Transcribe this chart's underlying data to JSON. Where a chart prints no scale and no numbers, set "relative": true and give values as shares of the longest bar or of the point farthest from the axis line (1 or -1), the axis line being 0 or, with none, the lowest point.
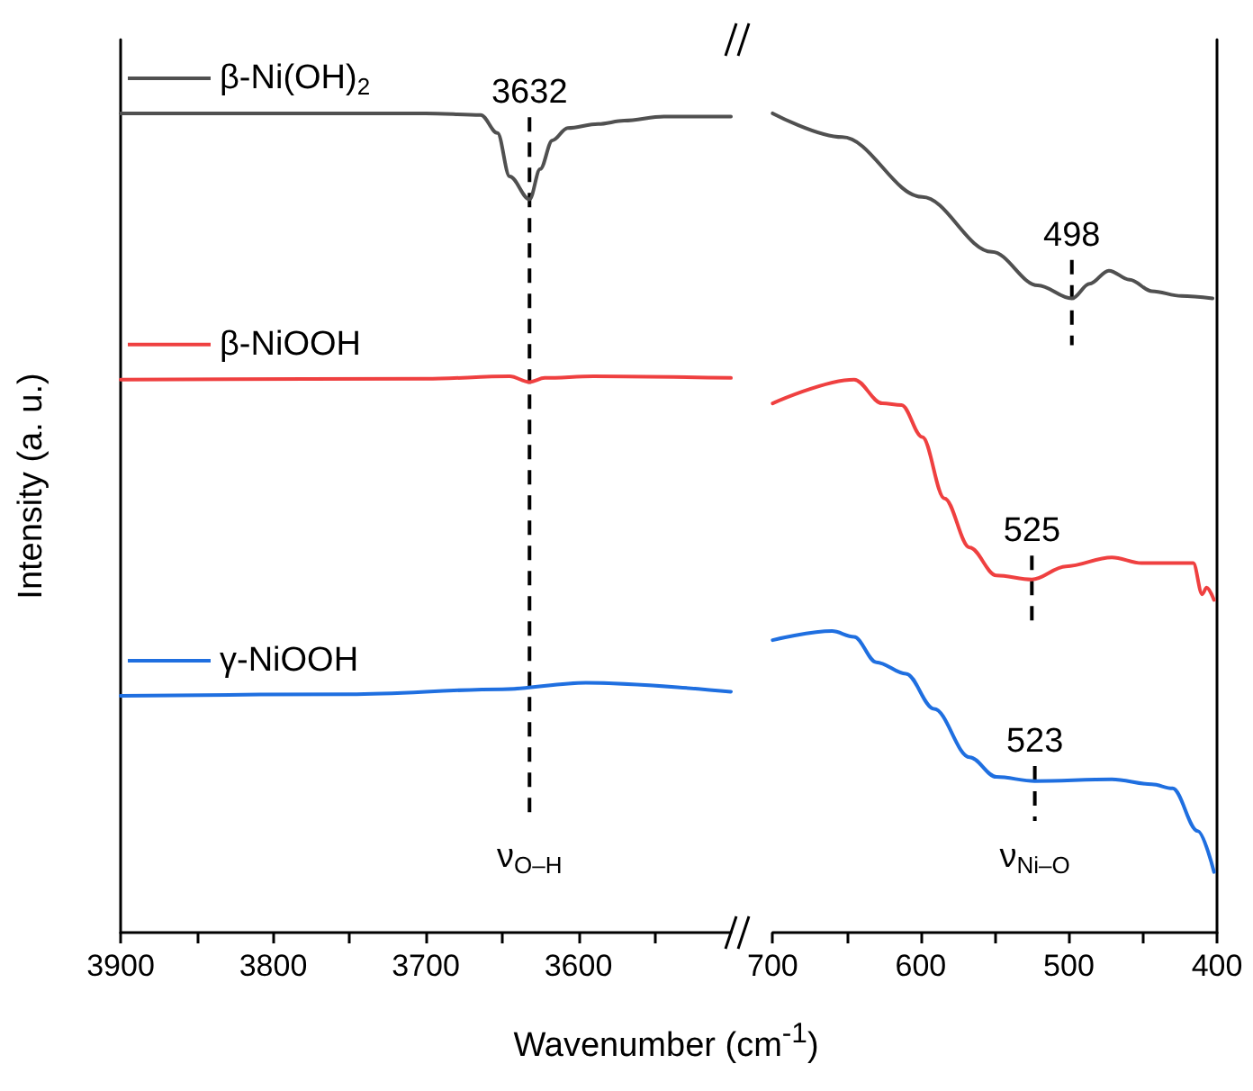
{
  "chart_data": [
    {
      "type": "line",
      "relative": true,
      "xlabel": "Wavenumber (cm$^{-1}$)",
      "ylabel": "Intensity (a. u.)",
      "legend": "top left",
      "grid": false,
      "xlim": [
        3900,
        3500
      ],
      "xticks": [
        3900,
        {
          "value": 3850,
          "label": null
        },
        3800,
        {
          "value": 3750,
          "label": null
        },
        3700,
        {
          "value": 3650,
          "label": null
        },
        3600,
        {
          "value": 3550,
          "label": null
        }
      ],
      "series": [
        {
          "name": "β-Ni(OH)$_{2}$",
          "color": "#505050",
          "x": [
            3900,
            3700,
            3664,
            3653,
            3645,
            3632,
            3625,
            3617,
            3607,
            3587,
            3570,
            3544,
            3500
          ],
          "values": [
            1.0,
            1.0,
            0.998,
            0.976,
            0.923,
            0.895,
            0.932,
            0.967,
            0.982,
            0.987,
            0.991,
            0.996,
            0.996
          ]
        },
        {
          "name": "β-NiOOH",
          "color": "#ef4040",
          "x": [
            3900,
            3700,
            3645,
            3632,
            3622,
            3590,
            3500
          ],
          "values": [
            0.675,
            0.676,
            0.679,
            0.672,
            0.677,
            0.679,
            0.677
          ]
        },
        {
          "name": "γ-NiOOH",
          "color": "#1f6fe0",
          "x": [
            3900,
            3750,
            3650,
            3595,
            3500
          ],
          "values": [
            0.289,
            0.291,
            0.297,
            0.305,
            0.294
          ]
        }
      ],
      "annotations": [
        {
          "text": "3632",
          "x": 3632,
          "y": 0.895
        }
      ],
      "ref_lines": [
        {
          "axis": "x",
          "value": 3632,
          "label": "ν$_{O–H}$",
          "color": "#000000",
          "line_style": "dashed"
        }
      ]
    },
    {
      "type": "line",
      "relative": true,
      "grid": false,
      "xlim": [
        700,
        400
      ],
      "xticks": [
        700,
        {
          "value": 650,
          "label": null
        },
        600,
        {
          "value": 550,
          "label": null
        },
        500,
        {
          "value": 450,
          "label": null
        },
        400
      ],
      "series": [
        {
          "color": "#505050",
          "x": [
            700,
            653,
            599,
            552,
            521,
            498,
            486,
            473,
            459,
            444,
            424,
            403
          ],
          "values": [
            1.0,
            0.971,
            0.898,
            0.831,
            0.79,
            0.774,
            0.792,
            0.808,
            0.797,
            0.783,
            0.777,
            0.774
          ]
        },
        {
          "color": "#ef4040",
          "x": [
            700,
            645,
            626,
            613,
            599,
            584,
            567,
            549,
            525,
            502,
            471,
            451,
            433,
            416,
            410,
            407,
            402
          ],
          "values": [
            0.646,
            0.675,
            0.646,
            0.644,
            0.605,
            0.53,
            0.47,
            0.436,
            0.431,
            0.447,
            0.458,
            0.451,
            0.451,
            0.451,
            0.413,
            0.421,
            0.406
          ]
        },
        {
          "color": "#1f6fe0",
          "x": [
            700,
            660,
            645,
            630,
            610,
            591,
            567,
            549,
            523,
            471,
            444,
            430,
            413,
            402
          ],
          "values": [
            0.357,
            0.368,
            0.361,
            0.33,
            0.316,
            0.273,
            0.214,
            0.19,
            0.185,
            0.187,
            0.181,
            0.176,
            0.124,
            0.074
          ]
        }
      ],
      "annotations": [
        {
          "text": "498",
          "x": 498,
          "y": 0.774
        },
        {
          "text": "525",
          "x": 525,
          "y": 0.431
        },
        {
          "text": "523",
          "x": 523,
          "y": 0.185
        }
      ],
      "ref_lines": [
        {
          "axis": "x",
          "value": 523,
          "label": "ν$_{Ni–O}$",
          "color": "#000000",
          "line_style": "dashed"
        }
      ]
    }
  ]
}
